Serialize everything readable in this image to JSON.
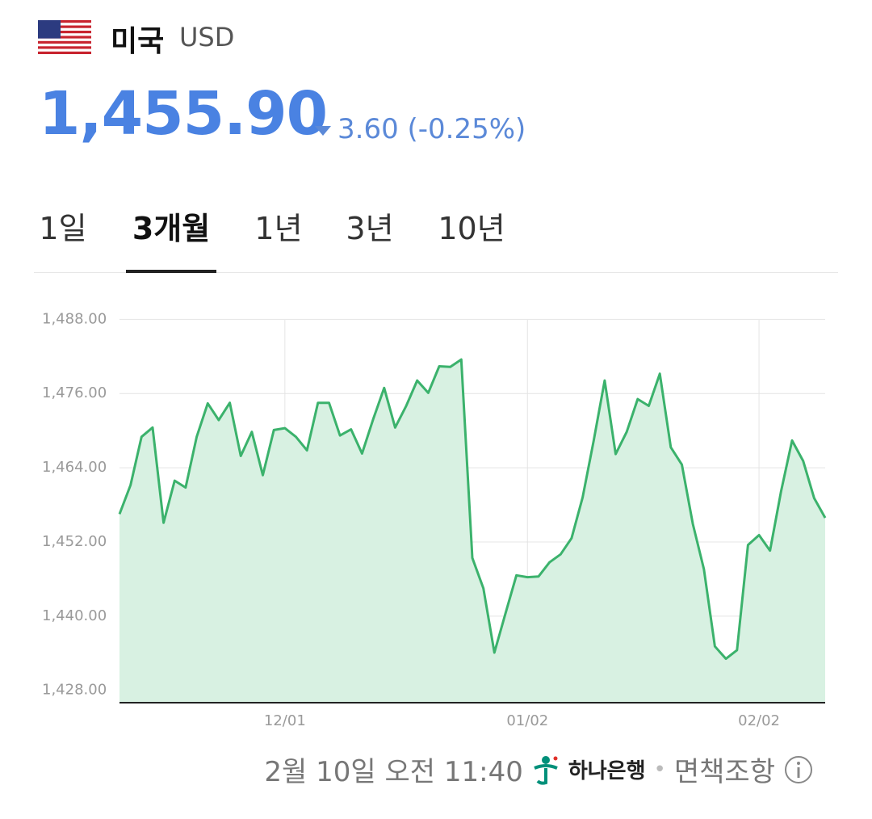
{
  "header": {
    "country": "미국",
    "currency": "USD",
    "price": "1,455.90",
    "change": "3.60 (-0.25%)",
    "direction": "down"
  },
  "tabs": {
    "items": [
      "1일",
      "3개월",
      "1년",
      "3년",
      "10년"
    ],
    "active": 1
  },
  "chart_data": {
    "type": "area",
    "color": "#3bb26c",
    "fill": "#d8f1e2",
    "grid": true,
    "categories": [
      null,
      null,
      null,
      null,
      null,
      null,
      null,
      null,
      null,
      null,
      null,
      null,
      null,
      null,
      null,
      "12/01",
      null,
      null,
      null,
      null,
      null,
      null,
      null,
      null,
      null,
      null,
      null,
      null,
      null,
      null,
      null,
      null,
      null,
      null,
      null,
      null,
      null,
      "01/02",
      null,
      null,
      null,
      null,
      null,
      null,
      null,
      null,
      null,
      null,
      null,
      null,
      null,
      null,
      null,
      null,
      null,
      null,
      null,
      null,
      "02/02",
      null,
      null,
      null,
      null,
      null,
      null
    ],
    "values": [
      1456.5,
      1461.2,
      1469.0,
      1470.5,
      1455.1,
      1461.9,
      1460.8,
      1469.0,
      1474.4,
      1471.7,
      1474.5,
      1465.9,
      1469.8,
      1462.8,
      1470.1,
      1470.4,
      1469.0,
      1466.8,
      1474.5,
      1474.5,
      1469.2,
      1470.2,
      1466.3,
      1471.8,
      1476.9,
      1470.5,
      1474.0,
      1478.1,
      1476.1,
      1480.4,
      1480.3,
      1481.5,
      1449.4,
      1444.5,
      1434.1,
      1440.4,
      1446.6,
      1446.3,
      1446.4,
      1448.7,
      1450.0,
      1452.6,
      1459.2,
      1468.3,
      1478.1,
      1466.2,
      1469.8,
      1475.1,
      1474.0,
      1479.2,
      1467.3,
      1464.5,
      1454.9,
      1447.6,
      1435.1,
      1433.1,
      1434.5,
      1451.5,
      1453.1,
      1450.6,
      1460.2,
      1468.4,
      1465.1,
      1459.1,
      1455.9
    ],
    "ylim": [
      1426,
      1490
    ],
    "yticks": [
      {
        "value": 1428,
        "label": "1,428.00"
      },
      {
        "value": 1440,
        "label": "1,440.00"
      },
      {
        "value": 1452,
        "label": "1,452.00"
      },
      {
        "value": 1464,
        "label": "1,464.00"
      },
      {
        "value": 1476,
        "label": "1,476.00"
      },
      {
        "value": 1488,
        "label": "1,488.00"
      }
    ]
  },
  "footer": {
    "timestamp": "2월 10일 오전 11:40",
    "bank": "하나은행",
    "disclaimer": "면책조항"
  }
}
